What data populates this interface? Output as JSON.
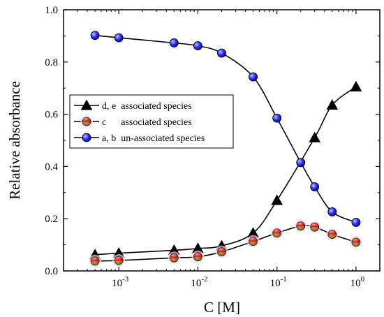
{
  "chart_data": {
    "type": "scatter",
    "xscale": "log",
    "xlabel": "C [M]",
    "ylabel": "Relative absorbance",
    "xlim": [
      0.0002,
      2
    ],
    "ylim": [
      0.0,
      1.0
    ],
    "yticks": [
      "0.0",
      "0.2",
      "0.4",
      "0.6",
      "0.8",
      "1.0"
    ],
    "xticks": [
      {
        "base": "10",
        "exp": "-3",
        "value": 0.001
      },
      {
        "base": "10",
        "exp": "-2",
        "value": 0.01
      },
      {
        "base": "10",
        "exp": "-1",
        "value": 0.1
      },
      {
        "base": "10",
        "exp": "0",
        "value": 1
      }
    ],
    "grid": false,
    "legend_position": "left-middle",
    "series": [
      {
        "name": "d, e  associated species",
        "marker": "triangle",
        "color": "#000000",
        "x": [
          0.0005,
          0.001,
          0.005,
          0.01,
          0.02,
          0.05,
          0.1,
          0.3,
          0.5,
          1.0
        ],
        "y": [
          0.062,
          0.068,
          0.079,
          0.086,
          0.096,
          0.145,
          0.27,
          0.51,
          0.635,
          0.705
        ]
      },
      {
        "name": "c      associated species",
        "marker": "half-circle",
        "color": "#d40000",
        "x": [
          0.0005,
          0.001,
          0.005,
          0.01,
          0.02,
          0.05,
          0.1,
          0.2,
          0.3,
          0.5,
          1.0
        ],
        "y": [
          0.038,
          0.04,
          0.05,
          0.054,
          0.073,
          0.113,
          0.145,
          0.172,
          0.168,
          0.14,
          0.11
        ]
      },
      {
        "name": "a, b  un-associated species",
        "marker": "circle",
        "color": "#1515e0",
        "x": [
          0.0005,
          0.001,
          0.005,
          0.01,
          0.02,
          0.05,
          0.1,
          0.2,
          0.3,
          0.5,
          1.0
        ],
        "y": [
          0.902,
          0.893,
          0.873,
          0.862,
          0.834,
          0.743,
          0.585,
          0.415,
          0.322,
          0.226,
          0.186
        ]
      }
    ]
  }
}
